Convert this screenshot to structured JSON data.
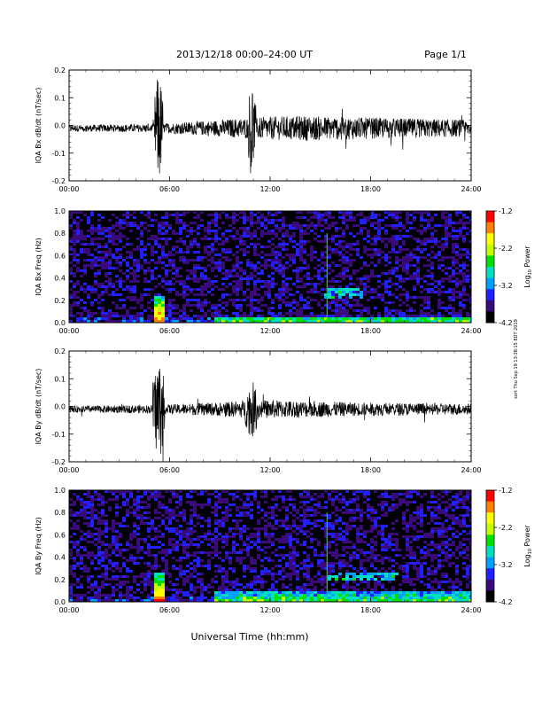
{
  "header": {
    "title": "2013/12/18   00:00–24:00 UT",
    "page": "Page 1/1"
  },
  "side_note": "sort Thu Sep 19 13:38:15 EDT 2019",
  "x_axis": {
    "label": "Universal Time (hh:mm)",
    "ticks": [
      "00:00",
      "06:00",
      "12:00",
      "18:00",
      "24:00"
    ],
    "range_hours": [
      0,
      24
    ]
  },
  "colorbar": {
    "label_base": "Log",
    "label_sub": "10",
    "label_tail": " Power",
    "ticks": [
      "-1.2",
      "-2.2",
      "-3.2",
      "-4.2"
    ],
    "range": [
      -4.2,
      -1.2
    ],
    "colors": [
      "#000000",
      "#3a0a7a",
      "#2020ff",
      "#00a0ff",
      "#00e0c0",
      "#00e000",
      "#c0ff00",
      "#ffff00",
      "#ff8000",
      "#ff0000"
    ]
  },
  "chart_data": [
    {
      "type": "line",
      "ylabel": "IQA Bx dB/dt (nT/sec)",
      "ylim": [
        -0.2,
        0.2
      ],
      "yticks": [
        "0.2",
        "0.1",
        "0.0",
        "-0.1",
        "-0.2"
      ],
      "baseline": -0.01,
      "noise_profile": [
        [
          0,
          0.012
        ],
        [
          5,
          0.015
        ],
        [
          9,
          0.03
        ],
        [
          11,
          0.04
        ],
        [
          14,
          0.045
        ],
        [
          17,
          0.04
        ],
        [
          24,
          0.03
        ]
      ],
      "events": [
        {
          "start_hour": 5.1,
          "end_hour": 5.6,
          "amplitude": 0.22
        },
        {
          "start_hour": 10.7,
          "end_hour": 11.1,
          "amplitude": 0.2
        }
      ]
    },
    {
      "type": "heatmap",
      "ylabel": "IQA Bx Freq (Hz)",
      "ylim": [
        0.0,
        1.0
      ],
      "yticks": [
        "1.0",
        "0.8",
        "0.6",
        "0.4",
        "0.2",
        "0.0"
      ],
      "features": [
        {
          "kind": "spike",
          "hour": 5.3,
          "max_freq": 0.25,
          "power": -1.4
        },
        {
          "kind": "line",
          "hour": 15.4,
          "max_freq": 0.8,
          "power": -2.6
        },
        {
          "kind": "patch",
          "start_hour": 15.2,
          "end_hour": 17.5,
          "min_freq": 0.22,
          "max_freq": 0.32,
          "power": -2.9
        },
        {
          "kind": "low_band",
          "start_hour": 8.5,
          "end_hour": 24,
          "max_freq": 0.07,
          "power": -2.4
        }
      ]
    },
    {
      "type": "line",
      "ylabel": "IQA By dB/dt (nT/sec)",
      "ylim": [
        -0.2,
        0.2
      ],
      "yticks": [
        "0.2",
        "0.1",
        "0.0",
        "-0.1",
        "-0.2"
      ],
      "baseline": -0.01,
      "noise_profile": [
        [
          0,
          0.012
        ],
        [
          5,
          0.015
        ],
        [
          9,
          0.025
        ],
        [
          11,
          0.035
        ],
        [
          14,
          0.03
        ],
        [
          17,
          0.025
        ],
        [
          24,
          0.02
        ]
      ],
      "events": [
        {
          "start_hour": 5.0,
          "end_hour": 5.7,
          "amplitude": 0.2
        },
        {
          "start_hour": 10.5,
          "end_hour": 11.3,
          "amplitude": 0.11
        }
      ]
    },
    {
      "type": "heatmap",
      "ylabel": "IQA By Freq (Hz)",
      "ylim": [
        0.0,
        1.0
      ],
      "yticks": [
        "1.0",
        "0.8",
        "0.6",
        "0.4",
        "0.2",
        "0.0"
      ],
      "features": [
        {
          "kind": "spike",
          "hour": 5.3,
          "max_freq": 0.28,
          "power": -1.4
        },
        {
          "kind": "line",
          "hour": 15.4,
          "max_freq": 0.8,
          "power": -2.6
        },
        {
          "kind": "patch",
          "start_hour": 15.3,
          "end_hour": 19.5,
          "min_freq": 0.2,
          "max_freq": 0.28,
          "power": -2.9
        },
        {
          "kind": "low_band",
          "start_hour": 8.5,
          "end_hour": 24,
          "max_freq": 0.1,
          "power": -2.4
        }
      ]
    }
  ]
}
